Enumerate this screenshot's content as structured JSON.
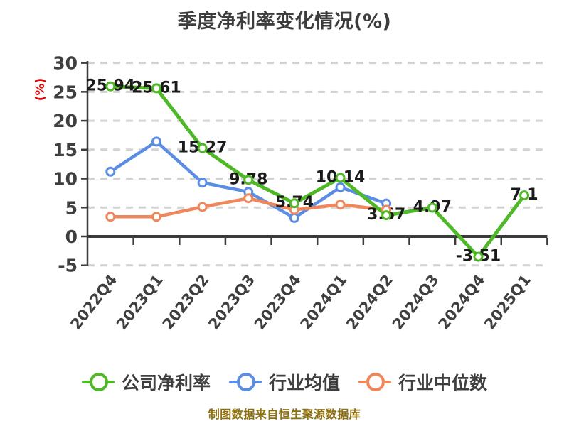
{
  "title": "季度净利率变化情况(%)",
  "y_axis_unit": "(%)",
  "footer": "制图数据来自恒生聚源数据库",
  "colors": {
    "company_green": "#4eb827",
    "industry_avg_blue": "#5b8de4",
    "industry_median_orange": "#f0875a",
    "grid": "#d2d2d2",
    "axis": "#3b3b3b",
    "tick_label": "#3f3f3f",
    "data_label": "#1b1b1b",
    "title": "#3d3d3d",
    "unit_red": "#e60000",
    "footer_gold": "#8f7011",
    "marker_fill": "#ffffff",
    "background": "#ffffff"
  },
  "chart_data": {
    "type": "line",
    "title": "季度净利率变化情况(%)",
    "xlabel": "",
    "ylabel": "(%)",
    "ylim": [
      -5,
      30
    ],
    "y_ticks": [
      30,
      25,
      20,
      15,
      10,
      5,
      0,
      -5
    ],
    "grid": "horizontal dashed",
    "legend_position": "bottom",
    "categories": [
      "2022Q4",
      "2023Q1",
      "2023Q2",
      "2023Q3",
      "2023Q4",
      "2024Q1",
      "2024Q2",
      "2024Q3",
      "2024Q4",
      "2025Q1"
    ],
    "series": [
      {
        "name": "公司净利率",
        "color": "#4eb827",
        "values": [
          25.94,
          25.61,
          15.27,
          9.78,
          5.74,
          10.14,
          3.67,
          4.97,
          -3.51,
          7.1
        ],
        "labels": [
          "25.94",
          "25.61",
          "15.27",
          "9.78",
          "5.74",
          "10.14",
          "3.67",
          "4.97",
          "-3.51",
          "7.1"
        ],
        "labeled": true
      },
      {
        "name": "行业均值",
        "color": "#5b8de4",
        "values": [
          11.2,
          16.4,
          9.3,
          7.7,
          3.2,
          8.5,
          5.7,
          null,
          null,
          null
        ],
        "labeled": false
      },
      {
        "name": "行业中位数",
        "color": "#f0875a",
        "values": [
          3.4,
          3.4,
          5.1,
          6.6,
          4.6,
          5.5,
          4.6,
          null,
          null,
          null
        ],
        "labeled": false
      }
    ]
  }
}
